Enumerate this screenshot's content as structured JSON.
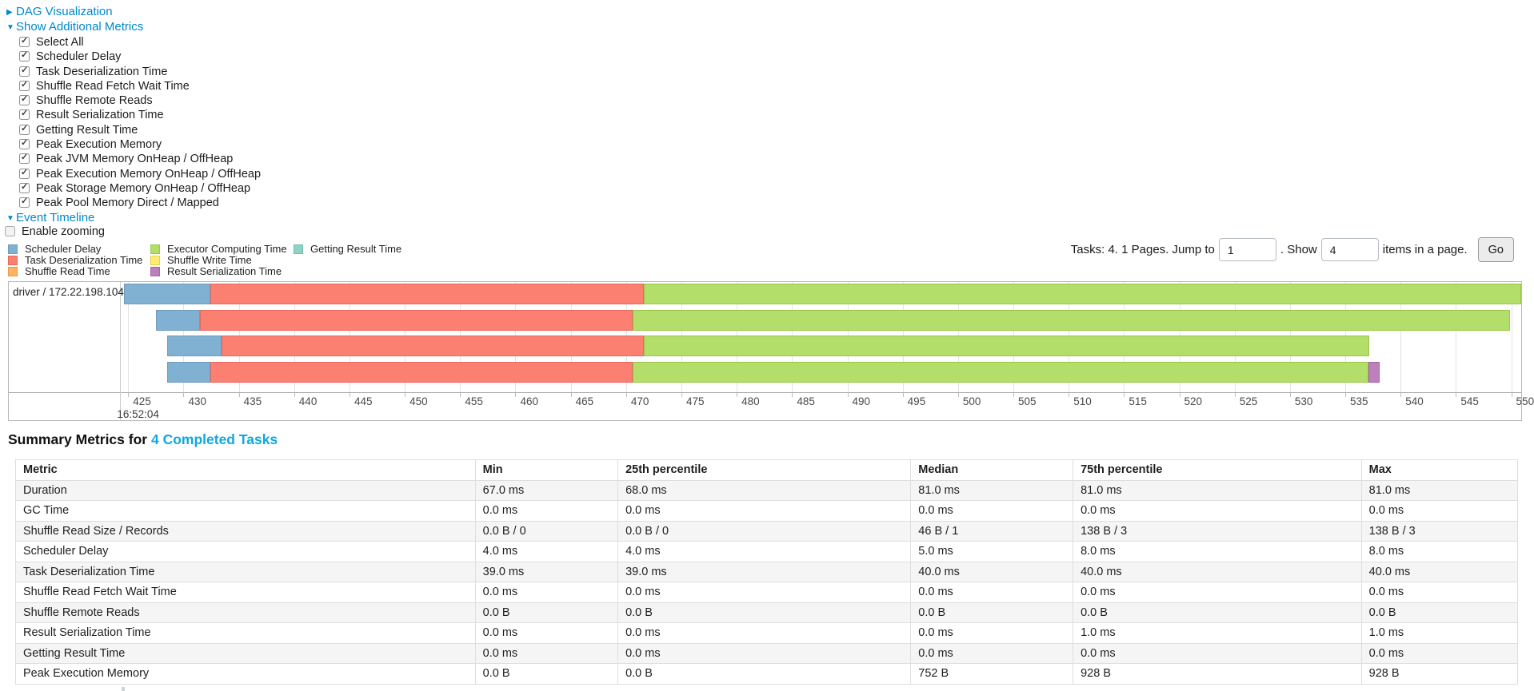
{
  "controls": {
    "dag": {
      "label": "DAG Visualization",
      "arrow": "▶"
    },
    "metrics_toggle": {
      "label": "Show Additional Metrics",
      "arrow": "▼"
    },
    "checkboxes": [
      {
        "label": "Select All",
        "checked": true
      },
      {
        "label": "Scheduler Delay",
        "checked": true
      },
      {
        "label": "Task Deserialization Time",
        "checked": true
      },
      {
        "label": "Shuffle Read Fetch Wait Time",
        "checked": true
      },
      {
        "label": "Shuffle Remote Reads",
        "checked": true
      },
      {
        "label": "Result Serialization Time",
        "checked": true
      },
      {
        "label": "Getting Result Time",
        "checked": true
      },
      {
        "label": "Peak Execution Memory",
        "checked": true
      },
      {
        "label": "Peak JVM Memory OnHeap / OffHeap",
        "checked": true
      },
      {
        "label": "Peak Execution Memory OnHeap / OffHeap",
        "checked": true
      },
      {
        "label": "Peak Storage Memory OnHeap / OffHeap",
        "checked": true
      },
      {
        "label": "Peak Pool Memory Direct / Mapped",
        "checked": true
      }
    ],
    "timeline_toggle": {
      "label": "Event Timeline",
      "arrow": "▼"
    },
    "enable_zooming": {
      "label": "Enable zooming",
      "checked": false
    }
  },
  "legend": {
    "columns": [
      [
        {
          "type": "scheduler_delay",
          "label": "Scheduler Delay",
          "color": "#80B1D3",
          "border": "#6E9CBF"
        },
        {
          "type": "task_deserialization",
          "label": "Task Deserialization Time",
          "color": "#FB8072",
          "border": "#E56A5D"
        },
        {
          "type": "shuffle_read",
          "label": "Shuffle Read Time",
          "color": "#FDB462",
          "border": "#E99A41"
        }
      ],
      [
        {
          "type": "executor_computing",
          "label": "Executor Computing Time",
          "color": "#B3DE69",
          "border": "#9AC64B"
        },
        {
          "type": "shuffle_write",
          "label": "Shuffle Write Time",
          "color": "#FFED6F",
          "border": "#E3D04F"
        },
        {
          "type": "result_serialization",
          "label": "Result Serialization Time",
          "color": "#BC80BD",
          "border": "#A466A5"
        }
      ],
      [
        {
          "type": "getting_result",
          "label": "Getting Result Time",
          "color": "#8DD3C7",
          "border": "#75BCAE"
        }
      ]
    ]
  },
  "pagination": {
    "text_before": "Tasks: 4. 1 Pages. Jump to",
    "jump_value": "1",
    "text_mid": ". Show",
    "show_value": "4",
    "text_after": "items in a page.",
    "go_label": "Go"
  },
  "chart_data": {
    "type": "timeline",
    "group_label": "driver / 172.22.198.104",
    "time_label": "16:52:04",
    "axis": {
      "min": 424.4,
      "max": 550.9,
      "tick_start": 425,
      "tick_end": 550,
      "tick_step": 5
    },
    "tasks": [
      {
        "segments": [
          {
            "type": "scheduler_delay",
            "start": 424.6,
            "end": 432.4
          },
          {
            "type": "task_deserialization",
            "start": 432.4,
            "end": 471.6
          },
          {
            "type": "executor_computing",
            "start": 471.6,
            "end": 550.9
          }
        ]
      },
      {
        "segments": [
          {
            "type": "scheduler_delay",
            "start": 427.5,
            "end": 431.5
          },
          {
            "type": "task_deserialization",
            "start": 431.5,
            "end": 470.6
          },
          {
            "type": "executor_computing",
            "start": 470.6,
            "end": 549.9
          }
        ]
      },
      {
        "segments": [
          {
            "type": "scheduler_delay",
            "start": 428.5,
            "end": 433.4
          },
          {
            "type": "task_deserialization",
            "start": 433.4,
            "end": 471.6
          },
          {
            "type": "executor_computing",
            "start": 471.6,
            "end": 537.2
          }
        ]
      },
      {
        "segments": [
          {
            "type": "scheduler_delay",
            "start": 428.5,
            "end": 432.4
          },
          {
            "type": "task_deserialization",
            "start": 432.4,
            "end": 470.6
          },
          {
            "type": "executor_computing",
            "start": 470.6,
            "end": 537.1
          },
          {
            "type": "result_serialization",
            "start": 537.1,
            "end": 538.1
          }
        ]
      }
    ]
  },
  "summary": {
    "title_prefix": "Summary Metrics for",
    "title_link": "4 Completed Tasks",
    "table": {
      "columns": [
        "Metric",
        "Min",
        "25th percentile",
        "Median",
        "75th percentile",
        "Max"
      ],
      "column_widths_pct": [
        30.6,
        9.5,
        19.5,
        10.8,
        19.2,
        10.4
      ],
      "rows": [
        {
          "metric": "Duration",
          "values": [
            "67.0 ms",
            "68.0 ms",
            "81.0 ms",
            "81.0 ms",
            "81.0 ms"
          ]
        },
        {
          "metric": "GC Time",
          "values": [
            "0.0 ms",
            "0.0 ms",
            "0.0 ms",
            "0.0 ms",
            "0.0 ms"
          ]
        },
        {
          "metric": "Shuffle Read Size / Records",
          "values": [
            "0.0 B / 0",
            "0.0 B / 0",
            "46 B / 1",
            "138 B / 3",
            "138 B / 3"
          ]
        },
        {
          "metric": "Scheduler Delay",
          "values": [
            "4.0 ms",
            "4.0 ms",
            "5.0 ms",
            "8.0 ms",
            "8.0 ms"
          ]
        },
        {
          "metric": "Task Deserialization Time",
          "values": [
            "39.0 ms",
            "39.0 ms",
            "40.0 ms",
            "40.0 ms",
            "40.0 ms"
          ]
        },
        {
          "metric": "Shuffle Read Fetch Wait Time",
          "values": [
            "0.0 ms",
            "0.0 ms",
            "0.0 ms",
            "0.0 ms",
            "0.0 ms"
          ]
        },
        {
          "metric": "Shuffle Remote Reads",
          "values": [
            "0.0 B",
            "0.0 B",
            "0.0 B",
            "0.0 B",
            "0.0 B"
          ]
        },
        {
          "metric": "Result Serialization Time",
          "values": [
            "0.0 ms",
            "0.0 ms",
            "0.0 ms",
            "1.0 ms",
            "1.0 ms"
          ]
        },
        {
          "metric": "Getting Result Time",
          "values": [
            "0.0 ms",
            "0.0 ms",
            "0.0 ms",
            "0.0 ms",
            "0.0 ms"
          ]
        },
        {
          "metric": "Peak Execution Memory",
          "values": [
            "0.0 B",
            "0.0 B",
            "752 B",
            "928 B",
            "928 B"
          ]
        }
      ]
    }
  }
}
